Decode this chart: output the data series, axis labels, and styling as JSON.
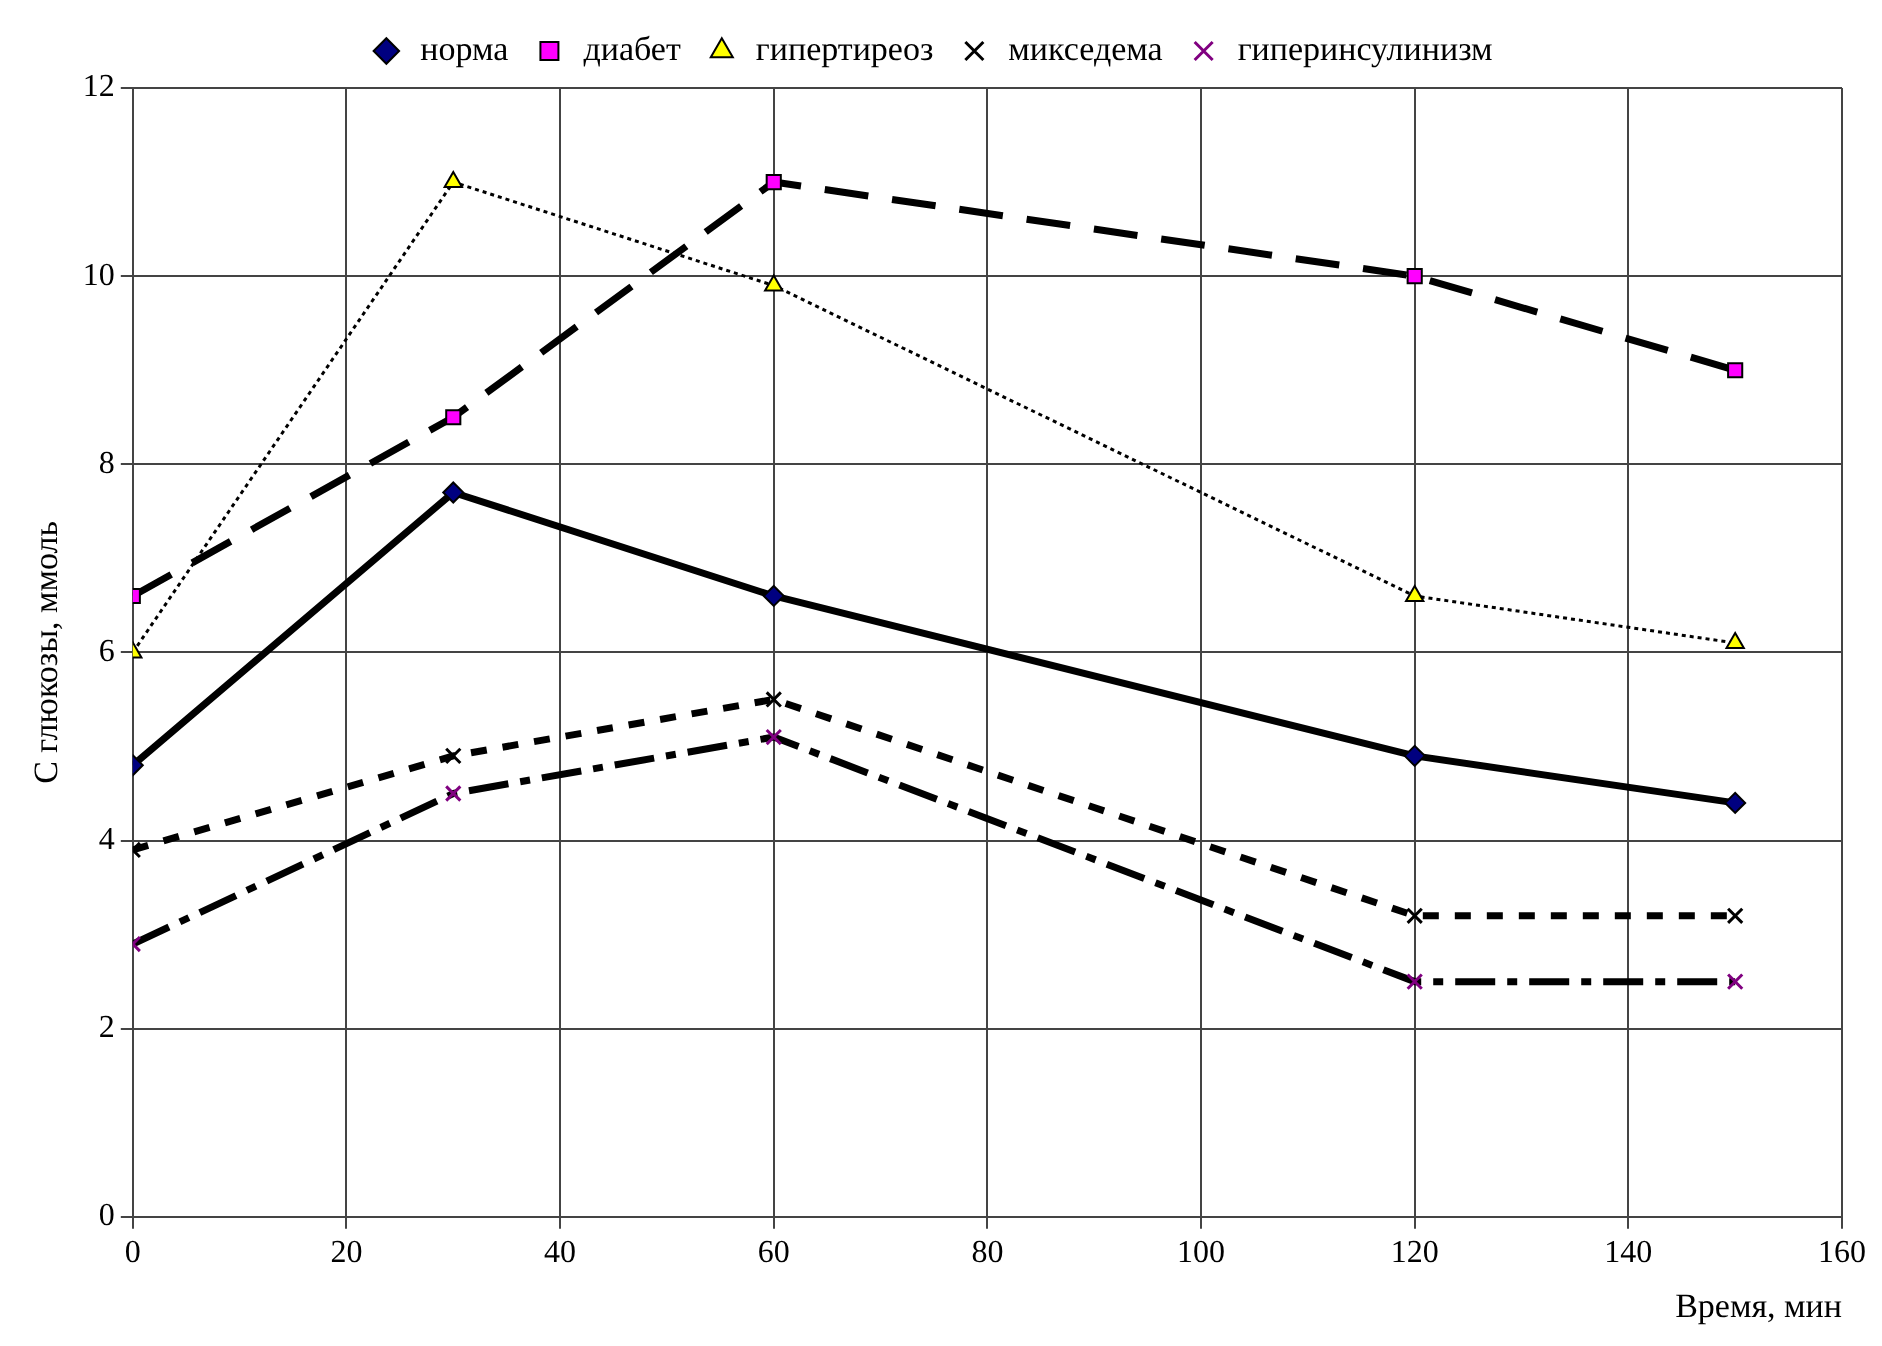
{
  "chart_data": {
    "type": "line",
    "xlabel": "Время, мин",
    "ylabel": "С глюкозы, ммоль",
    "x": [
      0,
      30,
      60,
      120,
      150
    ],
    "series": [
      {
        "name": "норма",
        "color": "#000080",
        "values": [
          4.8,
          7.7,
          6.6,
          4.9,
          4.4
        ],
        "marker": "diamond",
        "line_style": "solid"
      },
      {
        "name": "диабет",
        "color": "#ff00ff",
        "values": [
          6.6,
          8.5,
          11,
          10,
          9
        ],
        "marker": "square",
        "line_style": "longdash"
      },
      {
        "name": "гипертиреоз",
        "color": "#ffff00",
        "values": [
          6,
          11,
          9.9,
          6.6,
          6.1
        ],
        "marker": "triangle",
        "line_style": "dotted"
      },
      {
        "name": "микседема",
        "color": "#000000",
        "values": [
          3.9,
          4.9,
          5.5,
          3.2,
          3.2
        ],
        "marker": "cross",
        "line_style": "dashed"
      },
      {
        "name": "гиперинсулинизм",
        "color": "#800080",
        "values": [
          2.9,
          4.5,
          5.1,
          2.5,
          2.5
        ],
        "marker": "cross",
        "line_style": "dashdot"
      }
    ],
    "xlim": [
      0,
      160
    ],
    "xticks": [
      0,
      20,
      40,
      60,
      80,
      100,
      120,
      140,
      160
    ],
    "ylim": [
      0,
      12
    ],
    "yticks": [
      0,
      2,
      4,
      6,
      8,
      10,
      12
    ],
    "grid": true,
    "legend": "top"
  }
}
